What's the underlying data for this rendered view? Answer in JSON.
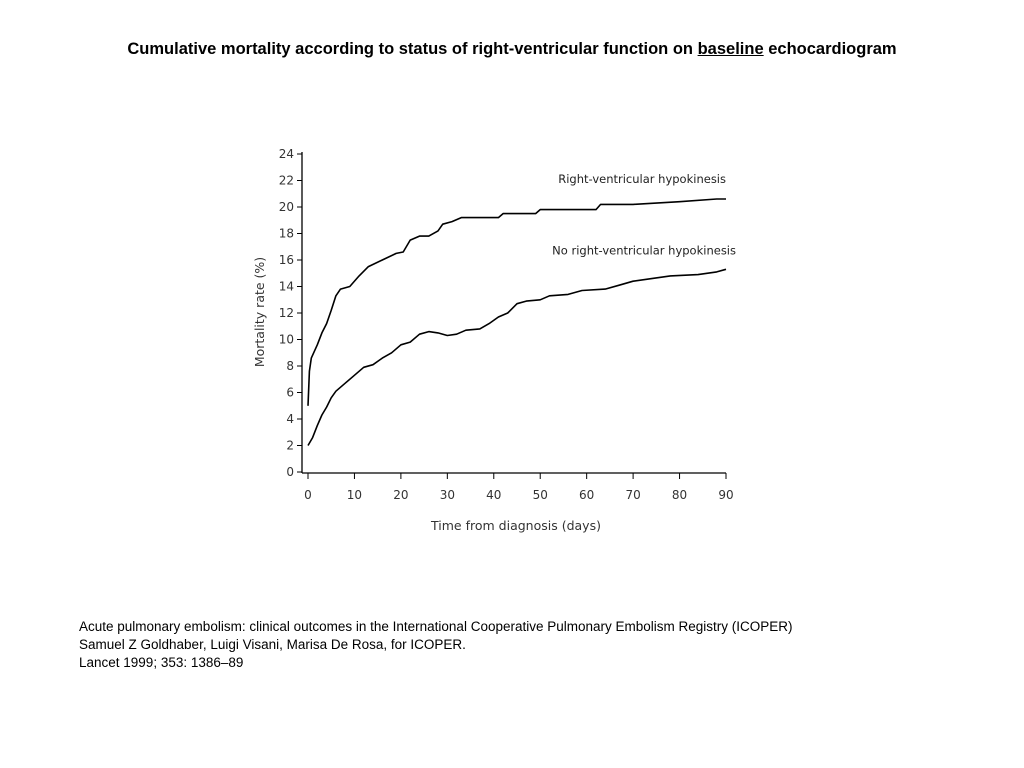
{
  "slide": {
    "title_before": "Cumulative mortality according to status of right-ventricular function on ",
    "title_underlined": "baseline",
    "title_after": " echocardiogram"
  },
  "citation": {
    "line1": "Acute pulmonary embolism: clinical outcomes in the International Cooperative Pulmonary Embolism Registry (ICOPER)",
    "line2": "Samuel Z Goldhaber, Luigi Visani, Marisa De Rosa, for ICOPER.",
    "line3": "Lancet 1999; 353: 1386–89"
  },
  "chart_data": {
    "type": "line",
    "title": "",
    "xlabel": "Time from diagnosis (days)",
    "ylabel": "Mortality rate (%)",
    "xlim": [
      0,
      90
    ],
    "ylim": [
      0,
      24
    ],
    "xticks": [
      0,
      10,
      20,
      30,
      40,
      50,
      60,
      70,
      80,
      90
    ],
    "yticks": [
      0,
      2,
      4,
      6,
      8,
      10,
      12,
      14,
      16,
      18,
      20,
      22,
      24
    ],
    "grid": false,
    "legend": "inline labels",
    "line_color": "#000000",
    "series": [
      {
        "name": "Right-ventricular hypokinesis",
        "points": [
          [
            0,
            5.0
          ],
          [
            0.3,
            7.6
          ],
          [
            0.7,
            8.6
          ],
          [
            2,
            9.6
          ],
          [
            3,
            10.5
          ],
          [
            4,
            11.2
          ],
          [
            5,
            12.2
          ],
          [
            6,
            13.3
          ],
          [
            7,
            13.8
          ],
          [
            9,
            14.0
          ],
          [
            11,
            14.8
          ],
          [
            13,
            15.5
          ],
          [
            16,
            16.0
          ],
          [
            19,
            16.5
          ],
          [
            20.5,
            16.6
          ],
          [
            22,
            17.5
          ],
          [
            24,
            17.8
          ],
          [
            26,
            17.8
          ],
          [
            28,
            18.2
          ],
          [
            29,
            18.7
          ],
          [
            31,
            18.9
          ],
          [
            33,
            19.2
          ],
          [
            36,
            19.2
          ],
          [
            41,
            19.2
          ],
          [
            42,
            19.5
          ],
          [
            49,
            19.5
          ],
          [
            50,
            19.8
          ],
          [
            62,
            19.8
          ],
          [
            63,
            20.2
          ],
          [
            70,
            20.2
          ],
          [
            80,
            20.4
          ],
          [
            88,
            20.6
          ],
          [
            90,
            20.6
          ]
        ]
      },
      {
        "name": "No right-ventricular hypokinesis",
        "points": [
          [
            0,
            2.0
          ],
          [
            1,
            2.6
          ],
          [
            2,
            3.5
          ],
          [
            3,
            4.3
          ],
          [
            4,
            4.9
          ],
          [
            5,
            5.6
          ],
          [
            6,
            6.1
          ],
          [
            8,
            6.7
          ],
          [
            10,
            7.3
          ],
          [
            12,
            7.9
          ],
          [
            14,
            8.1
          ],
          [
            16,
            8.6
          ],
          [
            18,
            9.0
          ],
          [
            20,
            9.6
          ],
          [
            22,
            9.8
          ],
          [
            24,
            10.4
          ],
          [
            26,
            10.6
          ],
          [
            28,
            10.5
          ],
          [
            30,
            10.3
          ],
          [
            32,
            10.4
          ],
          [
            34,
            10.7
          ],
          [
            37,
            10.8
          ],
          [
            39,
            11.2
          ],
          [
            41,
            11.7
          ],
          [
            43,
            12.0
          ],
          [
            45,
            12.7
          ],
          [
            47,
            12.9
          ],
          [
            50,
            13.0
          ],
          [
            52,
            13.3
          ],
          [
            56,
            13.4
          ],
          [
            59,
            13.7
          ],
          [
            64,
            13.8
          ],
          [
            67,
            14.1
          ],
          [
            70,
            14.4
          ],
          [
            74,
            14.6
          ],
          [
            78,
            14.8
          ],
          [
            84,
            14.9
          ],
          [
            88,
            15.1
          ],
          [
            90,
            15.3
          ]
        ]
      }
    ]
  }
}
